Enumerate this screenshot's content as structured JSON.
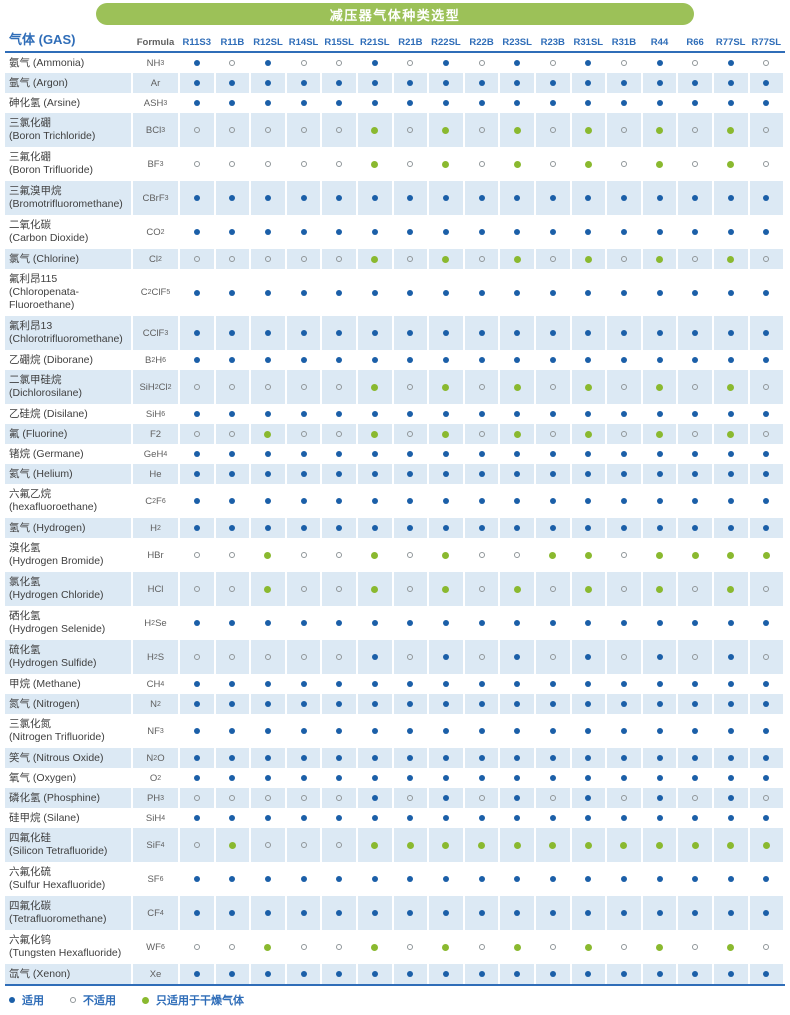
{
  "title": "减压器气体种类选型",
  "colors": {
    "title_bar_green": "#9cc158",
    "header_blue": "#2f6db8",
    "applicable_blue": "#1b5fa8",
    "dry_only_green": "#8ab92f",
    "not_applicable_ring": "#909699",
    "row_stripe": "#dce9f4"
  },
  "value_meanings": {
    "y": "适用",
    "n": "不适用",
    "d": "只适用于干燥气体"
  },
  "table": {
    "gas_header": "气体 (GAS)",
    "formula_header": "Formula",
    "columns": [
      "R11S3",
      "R11B",
      "R12SL",
      "R14SL",
      "R15SL",
      "R21SL",
      "R21B",
      "R22SL",
      "R22B",
      "R23SL",
      "R23B",
      "R31SL",
      "R31B",
      "R44",
      "R66",
      "R77SL",
      "R77SL"
    ],
    "rows": [
      {
        "name": [
          "氨气 (Ammonia)"
        ],
        "formula": "NH_3",
        "values": [
          "y",
          "n",
          "y",
          "n",
          "n",
          "y",
          "n",
          "y",
          "n",
          "y",
          "n",
          "y",
          "n",
          "y",
          "n",
          "y",
          "n"
        ]
      },
      {
        "name": [
          "氩气 (Argon)"
        ],
        "formula": "Ar",
        "values": [
          "y",
          "y",
          "y",
          "y",
          "y",
          "y",
          "y",
          "y",
          "y",
          "y",
          "y",
          "y",
          "y",
          "y",
          "y",
          "y",
          "y"
        ]
      },
      {
        "name": [
          "砷化氢 (Arsine)"
        ],
        "formula": "ASH_3",
        "values": [
          "y",
          "y",
          "y",
          "y",
          "y",
          "y",
          "y",
          "y",
          "y",
          "y",
          "y",
          "y",
          "y",
          "y",
          "y",
          "y",
          "y"
        ]
      },
      {
        "name": [
          "三氯化硼",
          "(Boron Trichloride)"
        ],
        "formula": "BCl_3",
        "values": [
          "n",
          "n",
          "n",
          "n",
          "n",
          "d",
          "n",
          "d",
          "n",
          "d",
          "n",
          "d",
          "n",
          "d",
          "n",
          "d",
          "n"
        ]
      },
      {
        "name": [
          "三氟化硼",
          "(Boron Trifluoride)"
        ],
        "formula": "BF_3",
        "values": [
          "n",
          "n",
          "n",
          "n",
          "n",
          "d",
          "n",
          "d",
          "n",
          "d",
          "n",
          "d",
          "n",
          "d",
          "n",
          "d",
          "n"
        ]
      },
      {
        "name": [
          "三氟溴甲烷",
          "(Bromotrifluoromethane)"
        ],
        "formula": "CBrF_3",
        "values": [
          "y",
          "y",
          "y",
          "y",
          "y",
          "y",
          "y",
          "y",
          "y",
          "y",
          "y",
          "y",
          "y",
          "y",
          "y",
          "y",
          "y"
        ]
      },
      {
        "name": [
          "二氧化碳",
          "(Carbon Dioxide)"
        ],
        "formula": "CO_2",
        "values": [
          "y",
          "y",
          "y",
          "y",
          "y",
          "y",
          "y",
          "y",
          "y",
          "y",
          "y",
          "y",
          "y",
          "y",
          "y",
          "y",
          "y"
        ]
      },
      {
        "name": [
          "氯气 (Chlorine)"
        ],
        "formula": "Cl_2",
        "values": [
          "n",
          "n",
          "n",
          "n",
          "n",
          "d",
          "n",
          "d",
          "n",
          "d",
          "n",
          "d",
          "n",
          "d",
          "n",
          "d",
          "n"
        ]
      },
      {
        "name": [
          "氟利昂115",
          "(Chloropenata-",
          "Fluoroethane)"
        ],
        "formula": "C_2ClF_5",
        "values": [
          "y",
          "y",
          "y",
          "y",
          "y",
          "y",
          "y",
          "y",
          "y",
          "y",
          "y",
          "y",
          "y",
          "y",
          "y",
          "y",
          "y"
        ]
      },
      {
        "name": [
          "氟利昂13",
          "(Chlorotrifluoromethane)"
        ],
        "formula": "CClF_3",
        "values": [
          "y",
          "y",
          "y",
          "y",
          "y",
          "y",
          "y",
          "y",
          "y",
          "y",
          "y",
          "y",
          "y",
          "y",
          "y",
          "y",
          "y"
        ]
      },
      {
        "name": [
          "乙硼烷 (Diborane)"
        ],
        "formula": "B_2H_6",
        "values": [
          "y",
          "y",
          "y",
          "y",
          "y",
          "y",
          "y",
          "y",
          "y",
          "y",
          "y",
          "y",
          "y",
          "y",
          "y",
          "y",
          "y"
        ]
      },
      {
        "name": [
          "二氯甲硅烷",
          "(Dichlorosilane)"
        ],
        "formula": "SiH_2Cl_2",
        "values": [
          "n",
          "n",
          "n",
          "n",
          "n",
          "d",
          "n",
          "d",
          "n",
          "d",
          "n",
          "d",
          "n",
          "d",
          "n",
          "d",
          "n"
        ]
      },
      {
        "name": [
          "乙硅烷 (Disilane)"
        ],
        "formula": "SiH_6",
        "values": [
          "y",
          "y",
          "y",
          "y",
          "y",
          "y",
          "y",
          "y",
          "y",
          "y",
          "y",
          "y",
          "y",
          "y",
          "y",
          "y",
          "y"
        ]
      },
      {
        "name": [
          "氟 (Fluorine)"
        ],
        "formula": "F2",
        "values": [
          "n",
          "n",
          "d",
          "n",
          "n",
          "d",
          "n",
          "d",
          "n",
          "d",
          "n",
          "d",
          "n",
          "d",
          "n",
          "d",
          "n"
        ]
      },
      {
        "name": [
          "锗烷 (Germane)"
        ],
        "formula": "GeH_4",
        "values": [
          "y",
          "y",
          "y",
          "y",
          "y",
          "y",
          "y",
          "y",
          "y",
          "y",
          "y",
          "y",
          "y",
          "y",
          "y",
          "y",
          "y"
        ]
      },
      {
        "name": [
          "氦气 (Helium)"
        ],
        "formula": "He",
        "values": [
          "y",
          "y",
          "y",
          "y",
          "y",
          "y",
          "y",
          "y",
          "y",
          "y",
          "y",
          "y",
          "y",
          "y",
          "y",
          "y",
          "y"
        ]
      },
      {
        "name": [
          "六氟乙烷",
          "(hexafluoroethane)"
        ],
        "formula": "C_2F_6",
        "values": [
          "y",
          "y",
          "y",
          "y",
          "y",
          "y",
          "y",
          "y",
          "y",
          "y",
          "y",
          "y",
          "y",
          "y",
          "y",
          "y",
          "y"
        ]
      },
      {
        "name": [
          "氢气 (Hydrogen)"
        ],
        "formula": "H_2",
        "values": [
          "y",
          "y",
          "y",
          "y",
          "y",
          "y",
          "y",
          "y",
          "y",
          "y",
          "y",
          "y",
          "y",
          "y",
          "y",
          "y",
          "y"
        ]
      },
      {
        "name": [
          "溴化氢",
          "(Hydrogen Bromide)"
        ],
        "formula": "HBr",
        "values": [
          "n",
          "n",
          "d",
          "n",
          "n",
          "d",
          "n",
          "d",
          "n",
          "n",
          "d",
          "d",
          "n",
          "d",
          "d",
          "d",
          "d"
        ]
      },
      {
        "name": [
          "氯化氢",
          "(Hydrogen Chloride)"
        ],
        "formula": "HCl",
        "values": [
          "n",
          "n",
          "d",
          "n",
          "n",
          "d",
          "n",
          "d",
          "n",
          "d",
          "n",
          "d",
          "n",
          "d",
          "n",
          "d",
          "n"
        ]
      },
      {
        "name": [
          "硒化氢",
          "(Hydrogen Selenide)"
        ],
        "formula": "H_2Se",
        "values": [
          "y",
          "y",
          "y",
          "y",
          "y",
          "y",
          "y",
          "y",
          "y",
          "y",
          "y",
          "y",
          "y",
          "y",
          "y",
          "y",
          "y"
        ]
      },
      {
        "name": [
          "硫化氢",
          "(Hydrogen Sulfide)"
        ],
        "formula": "H_2S",
        "values": [
          "n",
          "n",
          "n",
          "n",
          "n",
          "y",
          "n",
          "y",
          "n",
          "y",
          "n",
          "y",
          "n",
          "y",
          "n",
          "y",
          "n"
        ]
      },
      {
        "name": [
          "甲烷 (Methane)"
        ],
        "formula": "CH_4",
        "values": [
          "y",
          "y",
          "y",
          "y",
          "y",
          "y",
          "y",
          "y",
          "y",
          "y",
          "y",
          "y",
          "y",
          "y",
          "y",
          "y",
          "y"
        ]
      },
      {
        "name": [
          "氮气 (Nitrogen)"
        ],
        "formula": "N_2",
        "values": [
          "y",
          "y",
          "y",
          "y",
          "y",
          "y",
          "y",
          "y",
          "y",
          "y",
          "y",
          "y",
          "y",
          "y",
          "y",
          "y",
          "y"
        ]
      },
      {
        "name": [
          "三氯化氮",
          "(Nitrogen Trifluoride)"
        ],
        "formula": "NF_3",
        "values": [
          "y",
          "y",
          "y",
          "y",
          "y",
          "y",
          "y",
          "y",
          "y",
          "y",
          "y",
          "y",
          "y",
          "y",
          "y",
          "y",
          "y"
        ]
      },
      {
        "name": [
          "笑气 (Nitrous Oxide)"
        ],
        "formula": "N_2O",
        "values": [
          "y",
          "y",
          "y",
          "y",
          "y",
          "y",
          "y",
          "y",
          "y",
          "y",
          "y",
          "y",
          "y",
          "y",
          "y",
          "y",
          "y"
        ]
      },
      {
        "name": [
          "氧气 (Oxygen)"
        ],
        "formula": "O_2",
        "values": [
          "y",
          "y",
          "y",
          "y",
          "y",
          "y",
          "y",
          "y",
          "y",
          "y",
          "y",
          "y",
          "y",
          "y",
          "y",
          "y",
          "y"
        ]
      },
      {
        "name": [
          "磷化氢 (Phosphine)"
        ],
        "formula": "PH_3",
        "values": [
          "n",
          "n",
          "n",
          "n",
          "n",
          "y",
          "n",
          "y",
          "n",
          "y",
          "n",
          "y",
          "n",
          "y",
          "n",
          "y",
          "n"
        ]
      },
      {
        "name": [
          "硅甲烷 (Silane)"
        ],
        "formula": "SiH_4",
        "values": [
          "y",
          "y",
          "y",
          "y",
          "y",
          "y",
          "y",
          "y",
          "y",
          "y",
          "y",
          "y",
          "y",
          "y",
          "y",
          "y",
          "y"
        ]
      },
      {
        "name": [
          "四氟化硅",
          "(Silicon Tetrafluoride)"
        ],
        "formula": "SiF_4",
        "values": [
          "n",
          "d",
          "n",
          "n",
          "n",
          "d",
          "d",
          "d",
          "d",
          "d",
          "d",
          "d",
          "d",
          "d",
          "d",
          "d",
          "d"
        ]
      },
      {
        "name": [
          "六氟化硫",
          "(Sulfur Hexafluoride)"
        ],
        "formula": "SF_6",
        "values": [
          "y",
          "y",
          "y",
          "y",
          "y",
          "y",
          "y",
          "y",
          "y",
          "y",
          "y",
          "y",
          "y",
          "y",
          "y",
          "y",
          "y"
        ]
      },
      {
        "name": [
          "四氟化碳",
          "(Tetrafluoromethane)"
        ],
        "formula": "CF_4",
        "values": [
          "y",
          "y",
          "y",
          "y",
          "y",
          "y",
          "y",
          "y",
          "y",
          "y",
          "y",
          "y",
          "y",
          "y",
          "y",
          "y",
          "y"
        ]
      },
      {
        "name": [
          "六氟化钨",
          "(Tungsten Hexafluoride)"
        ],
        "formula": "WF_6",
        "values": [
          "n",
          "n",
          "d",
          "n",
          "n",
          "d",
          "n",
          "d",
          "n",
          "d",
          "n",
          "d",
          "n",
          "d",
          "n",
          "d",
          "n"
        ]
      },
      {
        "name": [
          "氙气 (Xenon)"
        ],
        "formula": "Xe",
        "values": [
          "y",
          "y",
          "y",
          "y",
          "y",
          "y",
          "y",
          "y",
          "y",
          "y",
          "y",
          "y",
          "y",
          "y",
          "y",
          "y",
          "y"
        ]
      }
    ]
  },
  "legend": {
    "items": [
      {
        "type": "y",
        "label": "适用"
      },
      {
        "type": "n",
        "label": "不适用"
      },
      {
        "type": "d",
        "label": "只适用于干燥气体"
      }
    ]
  }
}
